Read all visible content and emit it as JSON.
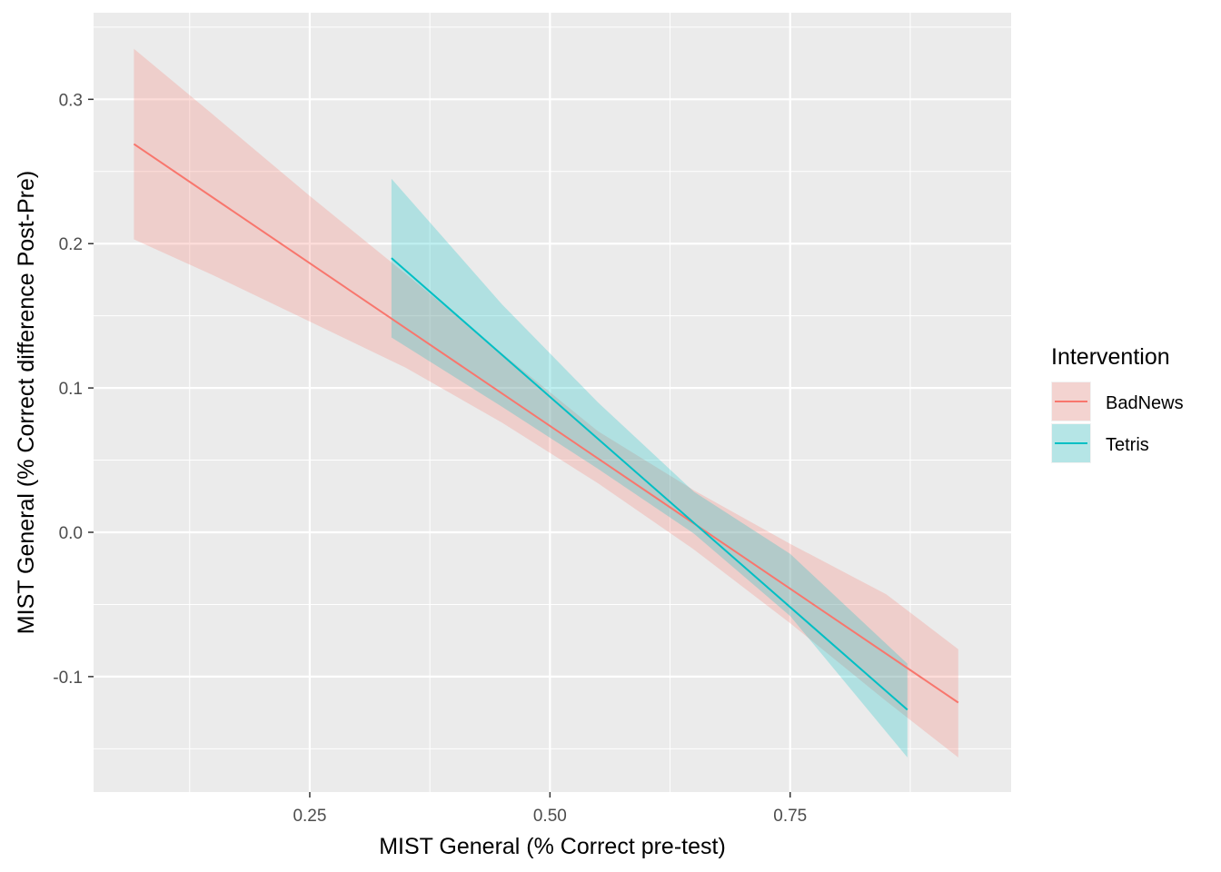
{
  "chart_data": {
    "type": "line",
    "xlabel": "MIST General (% Correct pre-test)",
    "ylabel": "MIST General (% Correct difference Post-Pre)",
    "xlim": [
      0.025,
      0.98
    ],
    "ylim": [
      -0.18,
      0.36
    ],
    "x_ticks": [
      0.25,
      0.5,
      0.75
    ],
    "x_tick_labels": [
      "0.25",
      "0.50",
      "0.75"
    ],
    "y_ticks": [
      -0.1,
      0.0,
      0.1,
      0.2,
      0.3
    ],
    "y_tick_labels": [
      "-0.1",
      "0.0",
      "0.1",
      "0.2",
      "0.3"
    ],
    "grid": true,
    "legend": {
      "title": "Intervention",
      "position": "right"
    },
    "series": [
      {
        "name": "BadNews",
        "color": "#F8766D",
        "x": [
          0.067,
          0.925
        ],
        "y": [
          0.269,
          -0.118
        ],
        "ribbon": {
          "x": [
            0.067,
            0.15,
            0.25,
            0.35,
            0.45,
            0.55,
            0.65,
            0.75,
            0.85,
            0.925
          ],
          "lower": [
            0.203,
            0.178,
            0.146,
            0.114,
            0.076,
            0.034,
            -0.012,
            -0.063,
            -0.117,
            -0.156
          ],
          "upper": [
            0.335,
            0.289,
            0.233,
            0.179,
            0.124,
            0.07,
            0.029,
            -0.008,
            -0.043,
            -0.081
          ]
        }
      },
      {
        "name": "Tetris",
        "color": "#00BFC4",
        "x": [
          0.335,
          0.872
        ],
        "y": [
          0.19,
          -0.123
        ],
        "ribbon": {
          "x": [
            0.335,
            0.45,
            0.55,
            0.65,
            0.75,
            0.872
          ],
          "lower": [
            0.135,
            0.087,
            0.044,
            -0.001,
            -0.058,
            -0.156
          ],
          "upper": [
            0.245,
            0.158,
            0.09,
            0.028,
            -0.015,
            -0.091
          ]
        }
      }
    ]
  }
}
